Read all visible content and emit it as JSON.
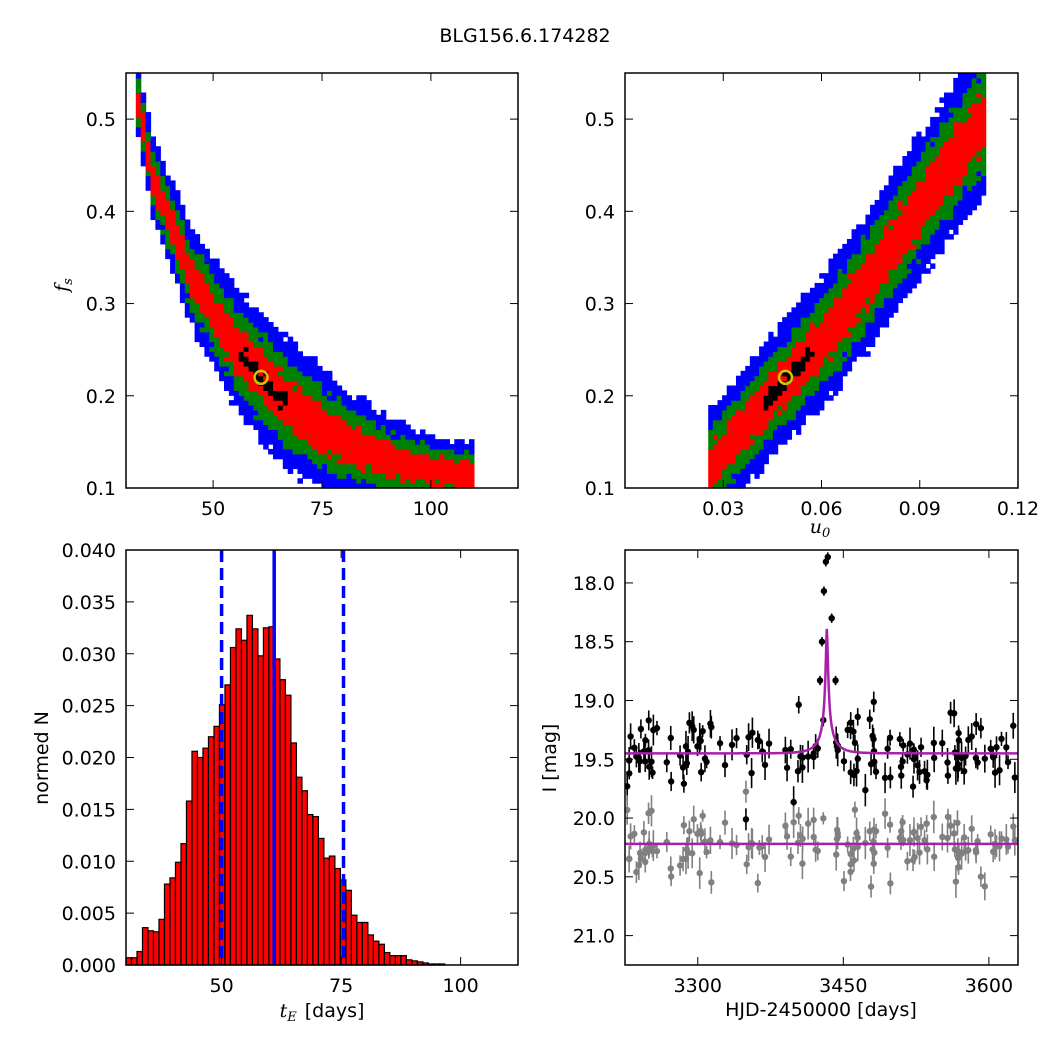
{
  "figure_title": "BLG156.6.174282",
  "chart_data": [
    {
      "id": "tE-fs",
      "type": "heatmap",
      "xlabel": "",
      "ylabel": "f",
      "ylabel_sub": "s",
      "xlim": [
        30,
        120
      ],
      "ylim": [
        0.1,
        0.55
      ],
      "xticks": [
        50,
        75,
        100
      ],
      "yticks": [
        0.1,
        0.2,
        0.3,
        0.4,
        0.5
      ],
      "best_fit": {
        "x": 61,
        "y": 0.22
      },
      "contour_colors": {
        "outer": "#0000ff",
        "mid": "#008000",
        "inner": "#ff0000",
        "core": "#000000"
      },
      "ridge": [
        [
          32,
          0.54
        ],
        [
          36,
          0.44
        ],
        [
          40,
          0.39
        ],
        [
          45,
          0.33
        ],
        [
          50,
          0.29
        ],
        [
          55,
          0.255
        ],
        [
          60,
          0.225
        ],
        [
          65,
          0.2
        ],
        [
          70,
          0.18
        ],
        [
          75,
          0.165
        ],
        [
          80,
          0.15
        ],
        [
          85,
          0.14
        ],
        [
          90,
          0.13
        ],
        [
          95,
          0.125
        ],
        [
          100,
          0.12
        ],
        [
          105,
          0.117
        ],
        [
          110,
          0.115
        ]
      ]
    },
    {
      "id": "u0-fs",
      "type": "heatmap",
      "xlabel": "u",
      "xlabel_sub": "0",
      "ylabel": "",
      "xlim": [
        0,
        0.12
      ],
      "ylim": [
        0.1,
        0.55
      ],
      "xticks": [
        0.03,
        0.06,
        0.09,
        0.12
      ],
      "yticks": [
        0.1,
        0.2,
        0.3,
        0.4,
        0.5
      ],
      "best_fit": {
        "x": 0.049,
        "y": 0.22
      },
      "contour_colors": {
        "outer": "#0000ff",
        "mid": "#008000",
        "inner": "#ff0000",
        "core": "#000000"
      },
      "ridge": [
        [
          0.025,
          0.12
        ],
        [
          0.035,
          0.16
        ],
        [
          0.045,
          0.2
        ],
        [
          0.055,
          0.24
        ],
        [
          0.065,
          0.28
        ],
        [
          0.075,
          0.33
        ],
        [
          0.085,
          0.38
        ],
        [
          0.095,
          0.43
        ],
        [
          0.105,
          0.48
        ],
        [
          0.11,
          0.5
        ]
      ]
    },
    {
      "id": "tE-hist",
      "type": "bar",
      "xlabel": "t",
      "xlabel_sub": "E",
      "xlabel_suffix": "[days]",
      "ylabel": "normed N",
      "xlim": [
        30,
        112
      ],
      "ylim": [
        0,
        0.04
      ],
      "xticks": [
        50,
        75,
        100
      ],
      "yticks": [
        0.0,
        0.005,
        0.01,
        0.015,
        0.02,
        0.025,
        0.03,
        0.035,
        0.04
      ],
      "ytick_labels": [
        "0.000",
        "0.005",
        "0.010",
        "0.015",
        "0.020",
        "0.025",
        "0.030",
        "0.035",
        "0.040"
      ],
      "bin_width": 1.15,
      "bin_start": 30,
      "values": [
        0.0007,
        0.0007,
        0.0013,
        0.0036,
        0.0033,
        0.0032,
        0.0044,
        0.0078,
        0.0084,
        0.0099,
        0.0117,
        0.0158,
        0.0206,
        0.02,
        0.0209,
        0.022,
        0.023,
        0.0251,
        0.027,
        0.0306,
        0.0324,
        0.0313,
        0.0337,
        0.0324,
        0.0298,
        0.0325,
        0.0326,
        0.0295,
        0.0275,
        0.026,
        0.0214,
        0.0181,
        0.0168,
        0.0145,
        0.0143,
        0.0122,
        0.0103,
        0.0105,
        0.0093,
        0.0082,
        0.0072,
        0.0048,
        0.0041,
        0.0041,
        0.0029,
        0.0023,
        0.002,
        0.0012,
        0.0009,
        0.0009,
        0.0009,
        0.0005,
        0.0004,
        0.0003,
        0.0002,
        0.0001,
        0.0001,
        0.0001
      ],
      "bar_color": "#ff0000",
      "median": 61,
      "lower": 50,
      "upper": 75.5,
      "line_color": "#0000ff"
    },
    {
      "id": "lightcurve",
      "type": "scatter",
      "xlabel": "HJD-2450000 [days]",
      "ylabel": "I [mag]",
      "xlim": [
        3225,
        3630
      ],
      "ylim": [
        21.25,
        17.72
      ],
      "xticks": [
        3300,
        3450,
        3600
      ],
      "yticks": [
        18.0,
        18.5,
        19.0,
        19.5,
        20.0,
        20.5,
        21.0
      ],
      "ytick_labels": [
        "18.0",
        "18.5",
        "19.0",
        "19.5",
        "20.0",
        "20.5",
        "21.0"
      ],
      "model": {
        "t0": 3433,
        "tE": 61,
        "u0": 0.049,
        "baseline": 19.45,
        "color": "#aa1eaa"
      },
      "residual_baseline": 20.22,
      "point_colors": {
        "data": "#000000",
        "residual": "#808080"
      }
    }
  ]
}
